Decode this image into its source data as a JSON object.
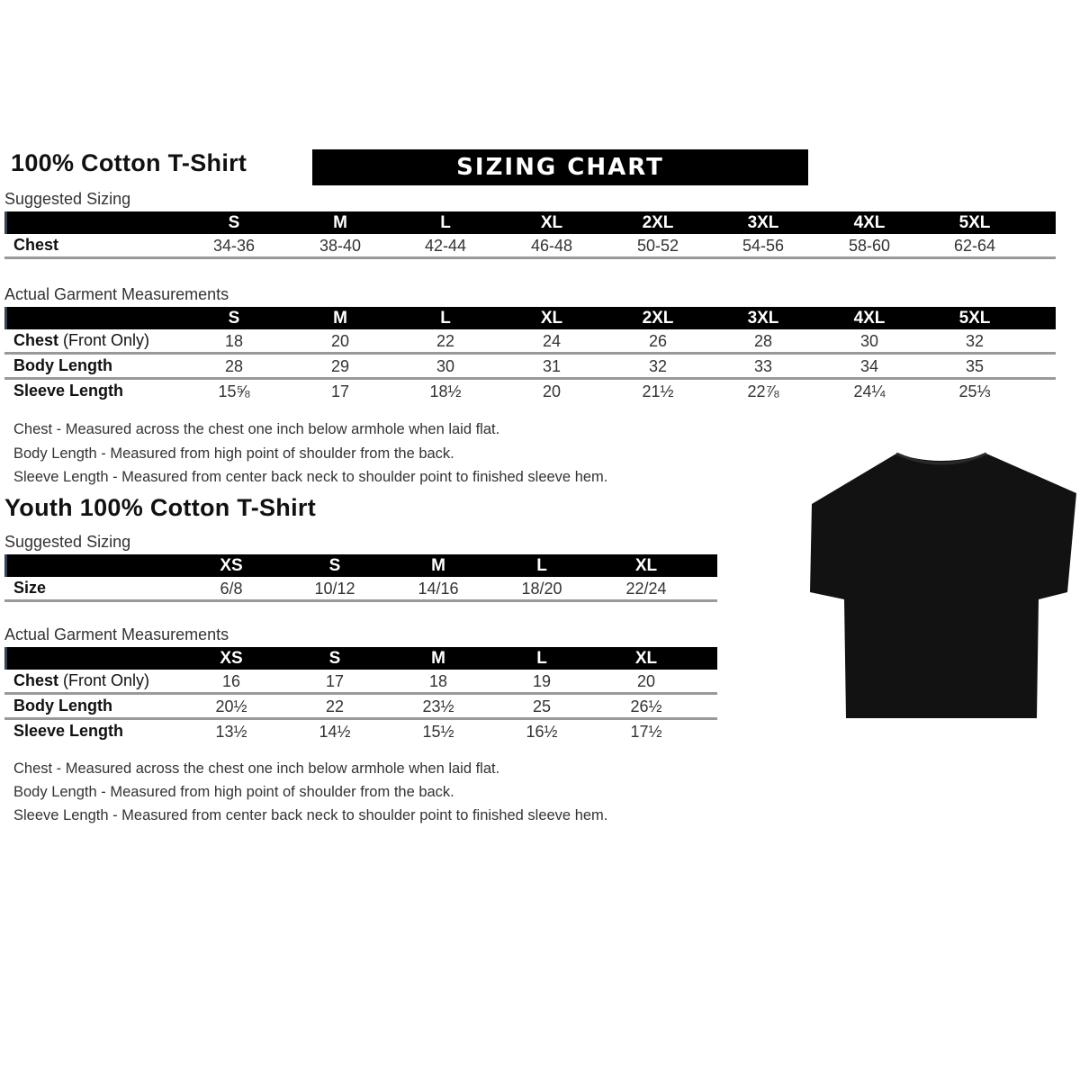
{
  "adult": {
    "title": "100% Cotton T-Shirt",
    "banner": "SIZING CHART",
    "suggested_label": "Suggested Sizing",
    "sizes": [
      "S",
      "M",
      "L",
      "XL",
      "2XL",
      "3XL",
      "4XL",
      "5XL"
    ],
    "suggested_rows": [
      {
        "label": "Chest",
        "values": [
          "34-36",
          "38-40",
          "42-44",
          "46-48",
          "50-52",
          "54-56",
          "58-60",
          "62-64"
        ]
      }
    ],
    "actual_label": "Actual Garment Measurements",
    "actual_rows": [
      {
        "label": "Chest",
        "label_suffix": " (Front Only)",
        "values": [
          "18",
          "20",
          "22",
          "24",
          "26",
          "28",
          "30",
          "32"
        ]
      },
      {
        "label": "Body Length",
        "label_suffix": "",
        "values": [
          "28",
          "29",
          "30",
          "31",
          "32",
          "33",
          "34",
          "35"
        ]
      },
      {
        "label": "Sleeve Length",
        "label_suffix": "",
        "values": [
          "15⅝",
          "17",
          "18½",
          "20",
          "21½",
          "22⅞",
          "24¼",
          "25⅓"
        ]
      }
    ],
    "notes": [
      "Chest - Measured across the chest one inch below armhole when laid flat.",
      "Body Length - Measured from high point of shoulder from the back.",
      "Sleeve Length - Measured from center back neck to shoulder point to finished sleeve hem."
    ]
  },
  "youth": {
    "title": "Youth 100% Cotton T-Shirt",
    "suggested_label": "Suggested Sizing",
    "sizes": [
      "XS",
      "S",
      "M",
      "L",
      "XL"
    ],
    "suggested_rows": [
      {
        "label": "Size",
        "values": [
          "6/8",
          "10/12",
          "14/16",
          "18/20",
          "22/24"
        ]
      }
    ],
    "actual_label": "Actual Garment Measurements",
    "actual_rows": [
      {
        "label": "Chest",
        "label_suffix": " (Front Only)",
        "values": [
          "16",
          "17",
          "18",
          "19",
          "20"
        ]
      },
      {
        "label": "Body Length",
        "label_suffix": "",
        "values": [
          "20½",
          "22",
          "23½",
          "25",
          "26½"
        ]
      },
      {
        "label": "Sleeve Length",
        "label_suffix": "",
        "values": [
          "13½",
          "14½",
          "15½",
          "16½",
          "17½"
        ]
      }
    ],
    "notes": [
      "Chest - Measured across the chest one inch below armhole when laid flat.",
      "Body Length - Measured from high point of shoulder from the back.",
      "Sleeve Length - Measured from center back neck to shoulder point to finished sleeve hem."
    ]
  },
  "image": {
    "icon": "tshirt-icon",
    "color": "#121212"
  }
}
